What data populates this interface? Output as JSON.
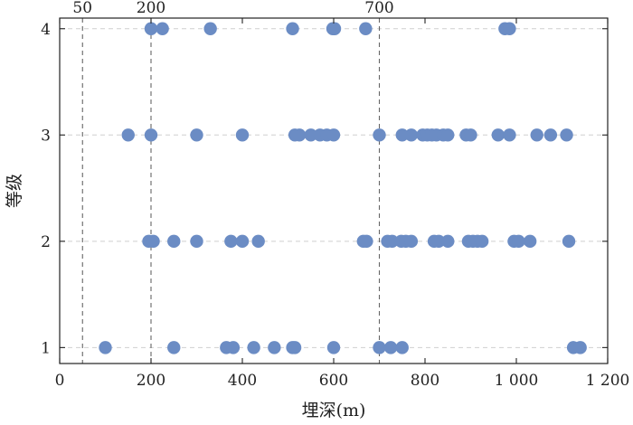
{
  "chart_data": {
    "type": "scatter",
    "title": "",
    "xlabel": "埋深(m)",
    "ylabel": "等级",
    "xlim": [
      0,
      1200
    ],
    "ylim": [
      0.85,
      4.1
    ],
    "x_ticks": [
      0,
      200,
      400,
      600,
      800,
      1000,
      1200
    ],
    "x_tick_labels": [
      "0",
      "200",
      "400",
      "600",
      "800",
      "1 000",
      "1 200"
    ],
    "y_ticks": [
      1,
      2,
      3,
      4
    ],
    "y_tick_labels": [
      "1",
      "2",
      "3",
      "4"
    ],
    "grid": "horizontal dashed at y ticks",
    "reference_lines": [
      {
        "x": 50,
        "label": "50"
      },
      {
        "x": 200,
        "label": "200"
      },
      {
        "x": 700,
        "label": "700"
      }
    ],
    "marker_color": "#6b8cc4",
    "points": [
      {
        "x": 100,
        "y": 1
      },
      {
        "x": 250,
        "y": 1
      },
      {
        "x": 365,
        "y": 1
      },
      {
        "x": 380,
        "y": 1
      },
      {
        "x": 425,
        "y": 1
      },
      {
        "x": 470,
        "y": 1
      },
      {
        "x": 510,
        "y": 1
      },
      {
        "x": 515,
        "y": 1
      },
      {
        "x": 600,
        "y": 1
      },
      {
        "x": 700,
        "y": 1
      },
      {
        "x": 725,
        "y": 1
      },
      {
        "x": 750,
        "y": 1
      },
      {
        "x": 1125,
        "y": 1
      },
      {
        "x": 1140,
        "y": 1
      },
      {
        "x": 195,
        "y": 2
      },
      {
        "x": 205,
        "y": 2
      },
      {
        "x": 250,
        "y": 2
      },
      {
        "x": 300,
        "y": 2
      },
      {
        "x": 375,
        "y": 2
      },
      {
        "x": 400,
        "y": 2
      },
      {
        "x": 435,
        "y": 2
      },
      {
        "x": 665,
        "y": 2
      },
      {
        "x": 672,
        "y": 2
      },
      {
        "x": 718,
        "y": 2
      },
      {
        "x": 728,
        "y": 2
      },
      {
        "x": 748,
        "y": 2
      },
      {
        "x": 758,
        "y": 2
      },
      {
        "x": 770,
        "y": 2
      },
      {
        "x": 820,
        "y": 2
      },
      {
        "x": 830,
        "y": 2
      },
      {
        "x": 850,
        "y": 2
      },
      {
        "x": 895,
        "y": 2
      },
      {
        "x": 905,
        "y": 2
      },
      {
        "x": 915,
        "y": 2
      },
      {
        "x": 925,
        "y": 2
      },
      {
        "x": 995,
        "y": 2
      },
      {
        "x": 1005,
        "y": 2
      },
      {
        "x": 1030,
        "y": 2
      },
      {
        "x": 1115,
        "y": 2
      },
      {
        "x": 150,
        "y": 3
      },
      {
        "x": 200,
        "y": 3
      },
      {
        "x": 300,
        "y": 3
      },
      {
        "x": 400,
        "y": 3
      },
      {
        "x": 515,
        "y": 3
      },
      {
        "x": 525,
        "y": 3
      },
      {
        "x": 550,
        "y": 3
      },
      {
        "x": 570,
        "y": 3
      },
      {
        "x": 585,
        "y": 3
      },
      {
        "x": 600,
        "y": 3
      },
      {
        "x": 700,
        "y": 3
      },
      {
        "x": 750,
        "y": 3
      },
      {
        "x": 770,
        "y": 3
      },
      {
        "x": 795,
        "y": 3
      },
      {
        "x": 805,
        "y": 3
      },
      {
        "x": 815,
        "y": 3
      },
      {
        "x": 825,
        "y": 3
      },
      {
        "x": 840,
        "y": 3
      },
      {
        "x": 850,
        "y": 3
      },
      {
        "x": 890,
        "y": 3
      },
      {
        "x": 900,
        "y": 3
      },
      {
        "x": 960,
        "y": 3
      },
      {
        "x": 985,
        "y": 3
      },
      {
        "x": 1045,
        "y": 3
      },
      {
        "x": 1075,
        "y": 3
      },
      {
        "x": 1110,
        "y": 3
      },
      {
        "x": 200,
        "y": 4
      },
      {
        "x": 225,
        "y": 4
      },
      {
        "x": 330,
        "y": 4
      },
      {
        "x": 510,
        "y": 4
      },
      {
        "x": 598,
        "y": 4
      },
      {
        "x": 602,
        "y": 4
      },
      {
        "x": 670,
        "y": 4
      },
      {
        "x": 975,
        "y": 4
      },
      {
        "x": 985,
        "y": 4
      }
    ]
  }
}
